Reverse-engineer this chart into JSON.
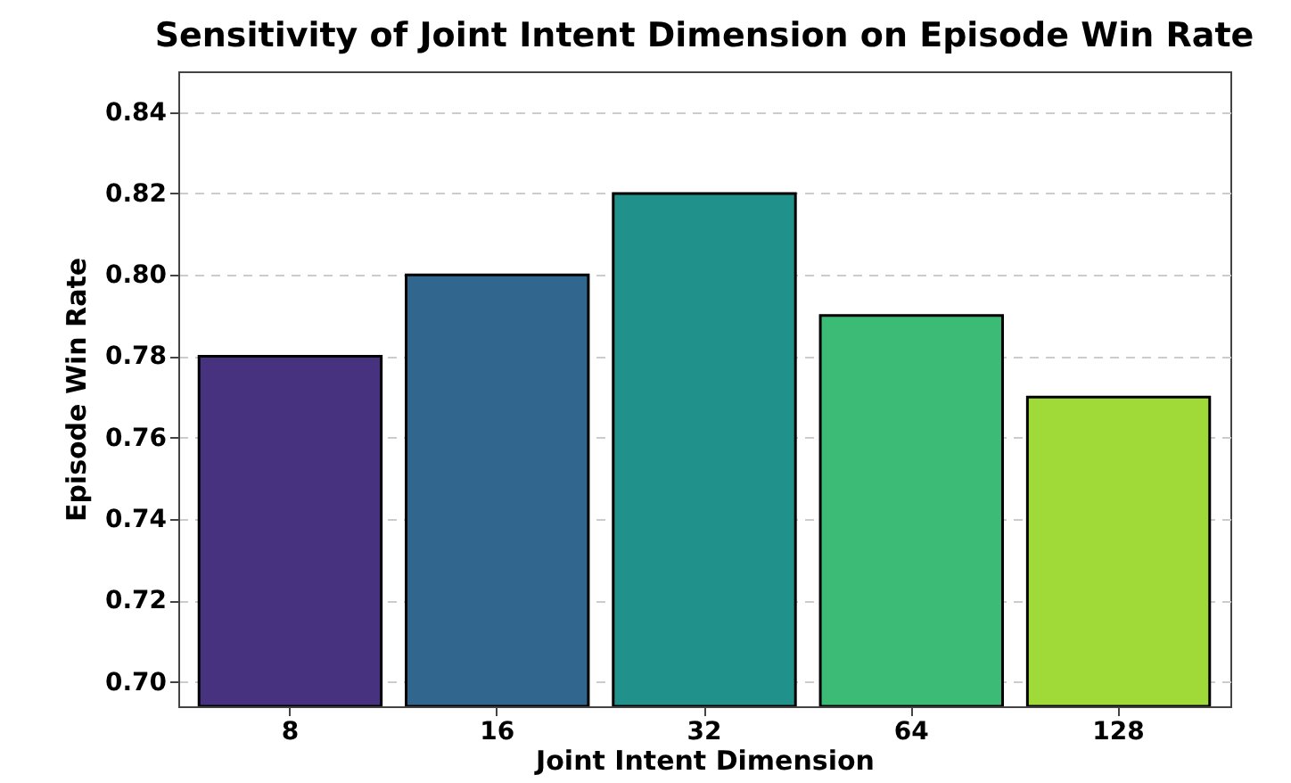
{
  "chart_data": {
    "type": "bar",
    "title": "Sensitivity of Joint Intent Dimension on Episode Win Rate",
    "xlabel": "Joint Intent Dimension",
    "ylabel": "Episode Win Rate",
    "categories": [
      "8",
      "16",
      "32",
      "64",
      "128"
    ],
    "values": [
      0.78,
      0.8,
      0.82,
      0.79,
      0.77
    ],
    "colors": [
      "#46327e",
      "#31668e",
      "#21918c",
      "#3bbb75",
      "#a0da39"
    ],
    "ylim": [
      0.694,
      0.85
    ],
    "yticks": [
      {
        "value": 0.7,
        "label": "0.70"
      },
      0.72,
      0.74,
      0.76,
      0.78,
      {
        "value": 0.8,
        "label": "0.80"
      },
      0.82,
      0.84
    ],
    "grid": "y"
  }
}
